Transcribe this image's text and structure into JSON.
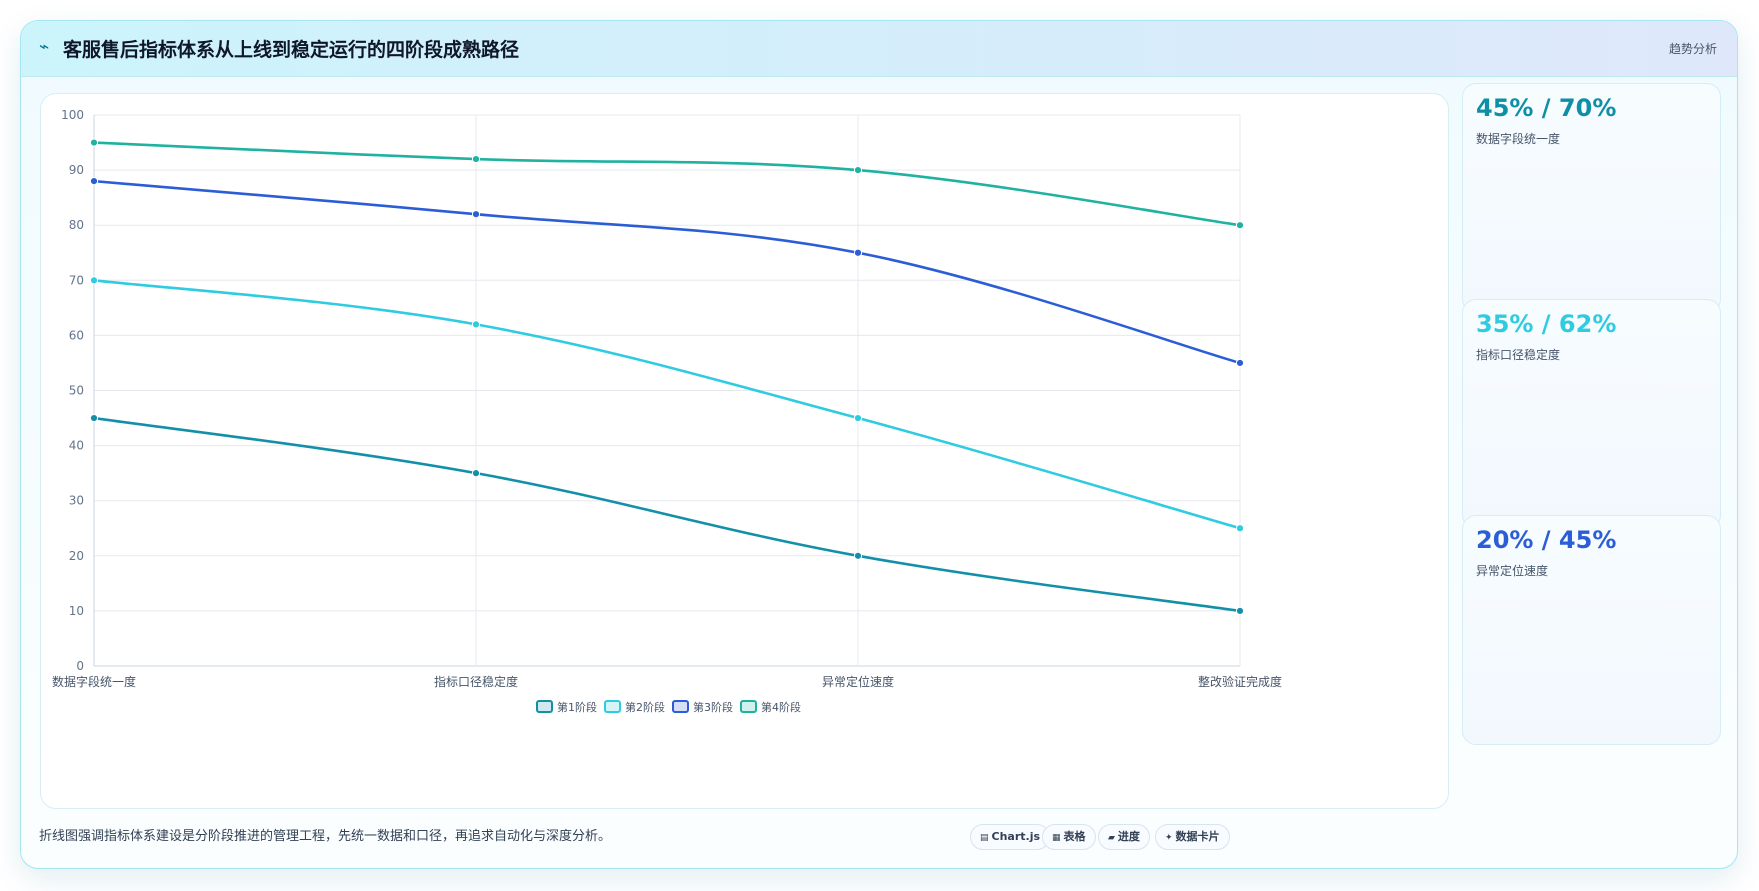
{
  "header": {
    "icon": "lightning-icon",
    "title": "客服售后指标体系从上线到稳定运行的四阶段成熟路径",
    "tag": "趋势分析"
  },
  "chart_data": {
    "type": "line",
    "categories": [
      "数据字段统一度",
      "指标口径稳定度",
      "异常定位速度",
      "整改验证完成度"
    ],
    "ylim": [
      0,
      100
    ],
    "yticks": [
      0,
      10,
      20,
      30,
      40,
      50,
      60,
      70,
      80,
      90,
      100
    ],
    "grid": true,
    "legend_position": "bottom",
    "series": [
      {
        "name": "第1阶段",
        "color": "#1390a8",
        "values": [
          45,
          35,
          20,
          10
        ]
      },
      {
        "name": "第2阶段",
        "color": "#2fcbe0",
        "values": [
          70,
          62,
          45,
          25
        ]
      },
      {
        "name": "第3阶段",
        "color": "#2b5dd6",
        "values": [
          88,
          82,
          75,
          55
        ]
      },
      {
        "name": "第4阶段",
        "color": "#1fb2a0",
        "values": [
          95,
          92,
          90,
          80
        ]
      }
    ]
  },
  "kpis": [
    {
      "value": "45% / 70%",
      "label": "数据字段统一度",
      "color": "#0e8fa6"
    },
    {
      "value": "35% / 62%",
      "label": "指标口径稳定度",
      "color": "#2fcbe0"
    },
    {
      "value": "20% / 45%",
      "label": "异常定位速度",
      "color": "#2b5dd6"
    }
  ],
  "footer": {
    "note": "折线图强调指标体系建设是分阶段推进的管理工程，先统一数据和口径，再追求自动化与深度分析。",
    "pills": [
      {
        "icon": "chart-icon",
        "glyph": "▤",
        "label": "Chart.js"
      },
      {
        "icon": "table-icon",
        "glyph": "▦",
        "label": "表格"
      },
      {
        "icon": "progress-icon",
        "glyph": "▰",
        "label": "进度"
      },
      {
        "icon": "sparkle-icon",
        "glyph": "✦",
        "label": "数据卡片"
      }
    ]
  }
}
